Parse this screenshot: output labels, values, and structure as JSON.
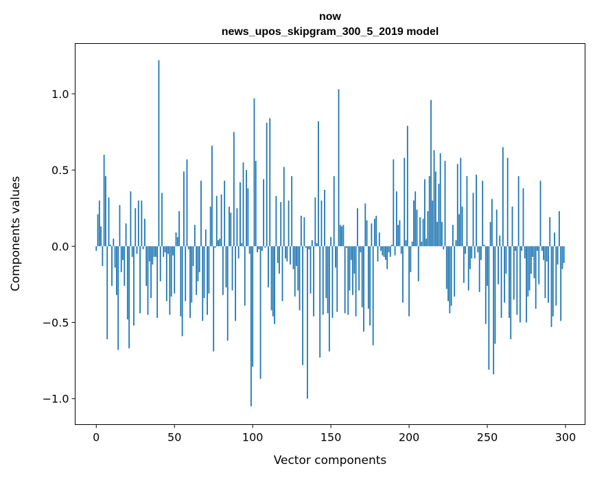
{
  "chart_data": {
    "type": "bar",
    "title": "now",
    "subtitle": "news_upos_skipgram_300_5_2019 model",
    "xlabel": "Vector components",
    "ylabel": "Components values",
    "xlim": [
      -13.5,
      312.5
    ],
    "ylim": [
      -1.17,
      1.33
    ],
    "xticks": [
      0,
      50,
      100,
      150,
      200,
      250,
      300
    ],
    "xtick_labels": [
      "0",
      "50",
      "100",
      "150",
      "200",
      "250",
      "300"
    ],
    "yticks": [
      -1.0,
      -0.5,
      0.0,
      0.5,
      1.0
    ],
    "ytick_labels": [
      "−1.0",
      "−0.5",
      "0.0",
      "0.5",
      "1.0"
    ],
    "grid": false,
    "legend": "none",
    "color": "#1f77b4",
    "values": [
      -0.03,
      0.21,
      0.3,
      0.13,
      -0.13,
      0.6,
      0.46,
      -0.61,
      0.32,
      0.01,
      -0.26,
      0.05,
      -0.14,
      -0.32,
      -0.68,
      0.27,
      -0.17,
      -0.09,
      -0.26,
      0.15,
      -0.48,
      -0.67,
      0.36,
      -0.07,
      -0.52,
      0.25,
      -0.05,
      0.3,
      -0.44,
      0.3,
      -0.02,
      0.18,
      -0.26,
      -0.45,
      -0.1,
      -0.34,
      -0.12,
      -0.07,
      -0.07,
      -0.47,
      1.22,
      -0.23,
      0.35,
      -0.07,
      -0.04,
      -0.36,
      -0.05,
      -0.45,
      -0.33,
      -0.06,
      -0.31,
      0.09,
      0.06,
      0.23,
      -0.46,
      -0.59,
      0.49,
      -0.36,
      0.57,
      -0.02,
      -0.47,
      -0.37,
      -0.13,
      0.14,
      -0.32,
      -0.23,
      -0.17,
      0.43,
      -0.49,
      -0.34,
      0.11,
      -0.45,
      -0.31,
      0.26,
      0.66,
      -0.69,
      -0.01,
      0.33,
      0.04,
      0.05,
      0.34,
      -0.32,
      0.43,
      -0.27,
      -0.62,
      0.26,
      0.22,
      -0.29,
      0.75,
      -0.49,
      0.25,
      -0.08,
      0.42,
      0.02,
      0.55,
      -0.39,
      0.5,
      0.38,
      -0.05,
      -1.05,
      -0.79,
      0.97,
      0.56,
      -0.04,
      -0.02,
      -0.87,
      -0.03,
      0.44,
      -0.01,
      0.81,
      -0.27,
      0.84,
      -0.42,
      -0.46,
      -0.51,
      0.33,
      -0.11,
      -0.18,
      0.29,
      -0.36,
      0.52,
      -0.08,
      -0.1,
      0.3,
      -0.12,
      0.46,
      -0.15,
      -0.33,
      -0.13,
      -0.29,
      -0.42,
      0.2,
      -0.78,
      0.19,
      -0.01,
      -1.0,
      -0.02,
      -0.31,
      0.04,
      -0.46,
      0.32,
      0.02,
      0.82,
      -0.73,
      0.3,
      -0.45,
      0.37,
      -0.34,
      -0.44,
      -0.69,
      0.06,
      -0.47,
      0.46,
      -0.14,
      -0.43,
      1.03,
      0.14,
      0.13,
      0.14,
      -0.44,
      -0.01,
      -0.45,
      -0.29,
      -0.09,
      -0.32,
      -0.18,
      -0.46,
      0.25,
      -0.29,
      -0.04,
      -0.4,
      -0.56,
      0.28,
      0.17,
      -0.41,
      -0.52,
      0.15,
      -0.65,
      0.18,
      0.2,
      -0.1,
      0.09,
      -0.03,
      -0.06,
      -0.07,
      -0.09,
      -0.15,
      -0.04,
      -0.07,
      0.01,
      0.57,
      -0.06,
      0.36,
      0.14,
      0.17,
      -0.05,
      -0.37,
      0.58,
      0.04,
      0.79,
      -0.46,
      -0.17,
      0.03,
      0.3,
      0.36,
      0.24,
      -0.23,
      0.19,
      0.03,
      0.18,
      0.44,
      0.05,
      0.23,
      0.46,
      0.96,
      0.3,
      0.63,
      0.49,
      0.16,
      0.41,
      0.61,
      0.16,
      -0.02,
      0.56,
      -0.28,
      -0.36,
      -0.44,
      -0.39,
      0.14,
      -0.33,
      0.04,
      0.54,
      0.21,
      0.58,
      0.26,
      -0.24,
      -0.05,
      0.46,
      -0.29,
      -0.15,
      -0.08,
      0.35,
      -0.08,
      0.47,
      -0.04,
      -0.3,
      -0.09,
      0.43,
      0.01,
      -0.51,
      -0.26,
      -0.81,
      0.16,
      0.31,
      -0.84,
      -0.64,
      0.24,
      -0.25,
      0.07,
      -0.47,
      0.65,
      -0.37,
      -0.18,
      0.58,
      -0.47,
      -0.61,
      0.26,
      -0.35,
      -0.03,
      -0.45,
      0.46,
      -0.5,
      -0.03,
      0.38,
      -0.08,
      -0.5,
      -0.33,
      -0.29,
      -0.18,
      -0.07,
      -0.21,
      -0.41,
      -0.03,
      -0.25,
      0.43,
      -0.03,
      -0.09,
      -0.34,
      -0.1,
      -0.37,
      0.19,
      -0.53,
      -0.46,
      0.09,
      -0.39,
      -0.12,
      0.23,
      -0.49,
      -0.15,
      -0.11
    ]
  }
}
